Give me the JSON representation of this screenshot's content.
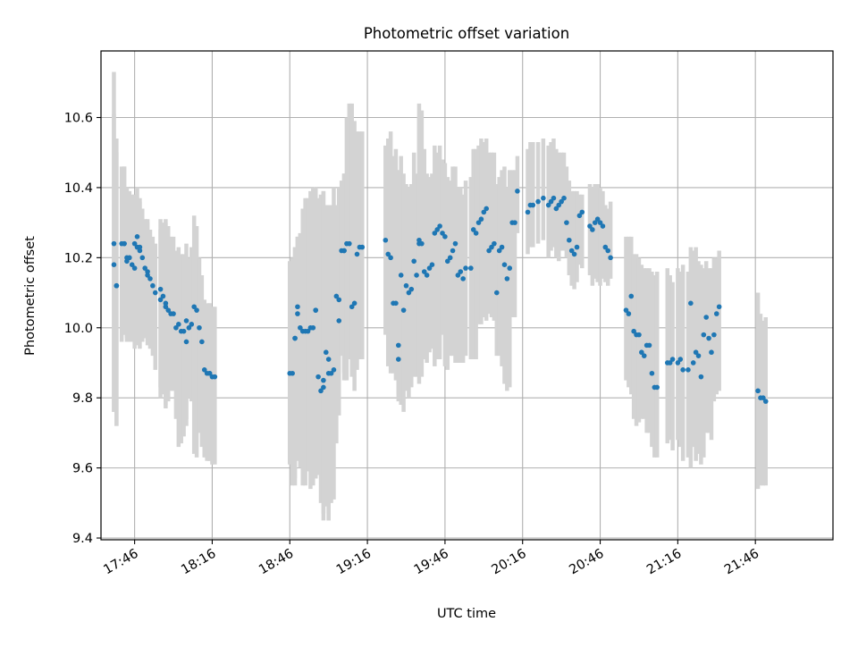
{
  "chart_data": {
    "type": "scatter",
    "title": "Photometric offset variation",
    "xlabel": "UTC time",
    "ylabel": "Photometric offset",
    "x_unit": "UTC time (HH:MM)",
    "xlim": [
      "17:33",
      "22:16"
    ],
    "ylim": [
      9.395,
      10.79
    ],
    "x_ticks": [
      "17:46",
      "18:16",
      "18:46",
      "19:16",
      "19:46",
      "20:16",
      "20:46",
      "21:16",
      "21:46"
    ],
    "y_ticks": [
      9.4,
      9.6,
      9.8,
      10.0,
      10.2,
      10.4,
      10.6
    ],
    "y_tick_labels": [
      "9.4",
      "9.6",
      "9.8",
      "10.0",
      "10.2",
      "10.4",
      "10.6"
    ],
    "grid": true,
    "legend": "none",
    "colors": {
      "points": "#1f77b4",
      "errorbars": "#d3d3d3",
      "grid": "#b0b0b0"
    },
    "series": [
      {
        "x": [
          "17:38",
          "17:38",
          "17:39",
          "17:39",
          "17:41",
          "17:42",
          "17:42",
          "17:43",
          "17:43",
          "17:44",
          "17:45",
          "17:46",
          "17:46",
          "17:47",
          "17:47",
          "17:48",
          "17:48",
          "17:49",
          "17:50",
          "17:51",
          "17:51",
          "17:52",
          "17:53",
          "17:54",
          "17:56",
          "17:56",
          "17:57",
          "17:58",
          "17:58",
          "17:59",
          "18:00",
          "18:01",
          "18:02",
          "18:03",
          "18:04",
          "18:05",
          "18:06",
          "18:06",
          "18:07",
          "18:08",
          "18:09",
          "18:10",
          "18:11",
          "18:12",
          "18:13",
          "18:14",
          "18:15",
          "18:15",
          "18:16",
          "18:17",
          "18:46",
          "18:47",
          "18:48",
          "18:48",
          "18:49",
          "18:49",
          "18:50",
          "18:51",
          "18:52",
          "18:53",
          "18:54",
          "18:55",
          "18:56",
          "18:56",
          "18:57",
          "18:58",
          "18:59",
          "18:59",
          "19:00",
          "19:01",
          "19:01",
          "19:02",
          "19:03",
          "19:04",
          "19:05",
          "19:05",
          "19:06",
          "19:07",
          "19:07",
          "19:08",
          "19:09",
          "19:10",
          "19:11",
          "19:12",
          "19:13",
          "19:14",
          "19:23",
          "19:24",
          "19:25",
          "19:26",
          "19:27",
          "19:28",
          "19:28",
          "19:29",
          "19:30",
          "19:31",
          "19:32",
          "19:33",
          "19:34",
          "19:35",
          "19:36",
          "19:36",
          "19:37",
          "19:38",
          "19:39",
          "19:40",
          "19:41",
          "19:42",
          "19:43",
          "19:44",
          "19:45",
          "19:46",
          "19:47",
          "19:48",
          "19:49",
          "19:50",
          "19:51",
          "19:52",
          "19:53",
          "19:54",
          "19:56",
          "19:57",
          "19:58",
          "19:59",
          "20:00",
          "20:01",
          "20:02",
          "20:03",
          "20:04",
          "20:05",
          "20:06",
          "20:07",
          "20:08",
          "20:09",
          "20:10",
          "20:11",
          "20:12",
          "20:13",
          "20:14",
          "20:18",
          "20:19",
          "20:20",
          "20:22",
          "20:24",
          "20:26",
          "20:27",
          "20:28",
          "20:29",
          "20:30",
          "20:31",
          "20:32",
          "20:33",
          "20:34",
          "20:35",
          "20:36",
          "20:37",
          "20:38",
          "20:39",
          "20:42",
          "20:43",
          "20:44",
          "20:45",
          "20:46",
          "20:47",
          "20:48",
          "20:49",
          "20:50",
          "20:56",
          "20:57",
          "20:58",
          "20:59",
          "21:00",
          "21:01",
          "21:02",
          "21:03",
          "21:04",
          "21:05",
          "21:06",
          "21:07",
          "21:08",
          "21:12",
          "21:13",
          "21:14",
          "21:16",
          "21:17",
          "21:18",
          "21:20",
          "21:21",
          "21:22",
          "21:23",
          "21:24",
          "21:25",
          "21:26",
          "21:27",
          "21:28",
          "21:29",
          "21:30",
          "21:31",
          "21:32",
          "21:47",
          "21:48",
          "21:49",
          "21:50"
        ],
        "y": [
          10.24,
          10.18,
          10.12,
          10.12,
          10.24,
          10.24,
          10.24,
          10.2,
          10.19,
          10.2,
          10.18,
          10.17,
          10.24,
          10.26,
          10.23,
          10.22,
          10.23,
          10.2,
          10.17,
          10.16,
          10.15,
          10.14,
          10.12,
          10.1,
          10.08,
          10.11,
          10.09,
          10.06,
          10.07,
          10.05,
          10.04,
          10.04,
          10.0,
          10.01,
          9.99,
          9.99,
          10.02,
          9.96,
          10.0,
          10.01,
          10.06,
          10.05,
          10.0,
          9.96,
          9.88,
          9.87,
          9.87,
          9.87,
          9.86,
          9.86,
          9.87,
          9.87,
          9.97,
          9.97,
          10.06,
          10.04,
          10.0,
          9.99,
          9.99,
          9.99,
          10.0,
          10.0,
          10.05,
          10.05,
          9.86,
          9.82,
          9.83,
          9.85,
          9.93,
          9.91,
          9.87,
          9.87,
          9.88,
          10.09,
          10.08,
          10.02,
          10.22,
          10.22,
          10.22,
          10.24,
          10.24,
          10.06,
          10.07,
          10.21,
          10.23,
          10.23,
          10.25,
          10.21,
          10.2,
          10.07,
          10.07,
          9.91,
          9.95,
          10.15,
          10.05,
          10.12,
          10.1,
          10.11,
          10.19,
          10.15,
          10.25,
          10.24,
          10.24,
          10.16,
          10.15,
          10.17,
          10.18,
          10.27,
          10.28,
          10.29,
          10.27,
          10.26,
          10.19,
          10.2,
          10.22,
          10.24,
          10.15,
          10.16,
          10.14,
          10.17,
          10.17,
          10.28,
          10.27,
          10.3,
          10.31,
          10.33,
          10.34,
          10.22,
          10.23,
          10.24,
          10.1,
          10.22,
          10.23,
          10.18,
          10.14,
          10.17,
          10.3,
          10.3,
          10.39,
          10.33,
          10.35,
          10.35,
          10.36,
          10.37,
          10.35,
          10.36,
          10.37,
          10.34,
          10.35,
          10.36,
          10.37,
          10.3,
          10.25,
          10.22,
          10.21,
          10.23,
          10.32,
          10.33,
          10.29,
          10.28,
          10.3,
          10.31,
          10.3,
          10.29,
          10.23,
          10.22,
          10.2,
          10.05,
          10.04,
          10.09,
          9.99,
          9.98,
          9.98,
          9.93,
          9.92,
          9.95,
          9.95,
          9.87,
          9.83,
          9.83,
          9.9,
          9.9,
          9.91,
          9.9,
          9.91,
          9.88,
          9.88,
          10.07,
          9.9,
          9.93,
          9.92,
          9.86,
          9.98,
          10.03,
          9.97,
          9.93,
          9.98,
          10.04,
          10.06,
          9.82,
          9.8,
          9.8,
          9.79
        ],
        "y_err_low": [
          0.48,
          0.42,
          0.4,
          0.4,
          0.28,
          0.26,
          0.26,
          0.24,
          0.22,
          0.24,
          0.22,
          0.2,
          0.3,
          0.3,
          0.28,
          0.28,
          0.27,
          0.24,
          0.2,
          0.2,
          0.2,
          0.2,
          0.2,
          0.22,
          0.28,
          0.28,
          0.28,
          0.28,
          0.3,
          0.26,
          0.22,
          0.22,
          0.26,
          0.35,
          0.32,
          0.3,
          0.3,
          0.22,
          0.2,
          0.22,
          0.42,
          0.42,
          0.3,
          0.3,
          0.25,
          0.25,
          0.25,
          0.25,
          0.25,
          0.25,
          0.26,
          0.32,
          0.4,
          0.42,
          0.44,
          0.4,
          0.4,
          0.44,
          0.44,
          0.4,
          0.46,
          0.45,
          0.48,
          0.48,
          0.28,
          0.32,
          0.36,
          0.4,
          0.44,
          0.46,
          0.42,
          0.37,
          0.37,
          0.42,
          0.33,
          0.27,
          0.3,
          0.35,
          0.37,
          0.39,
          0.33,
          0.2,
          0.25,
          0.33,
          0.32,
          0.32,
          0.27,
          0.32,
          0.33,
          0.2,
          0.22,
          0.12,
          0.14,
          0.37,
          0.29,
          0.3,
          0.3,
          0.28,
          0.33,
          0.29,
          0.38,
          0.4,
          0.38,
          0.25,
          0.25,
          0.24,
          0.24,
          0.38,
          0.37,
          0.38,
          0.29,
          0.37,
          0.31,
          0.28,
          0.3,
          0.34,
          0.25,
          0.26,
          0.24,
          0.25,
          0.26,
          0.37,
          0.36,
          0.29,
          0.3,
          0.3,
          0.32,
          0.18,
          0.2,
          0.22,
          0.18,
          0.3,
          0.34,
          0.34,
          0.32,
          0.34,
          0.27,
          0.27,
          0.12,
          0.12,
          0.12,
          0.12,
          0.12,
          0.12,
          0.15,
          0.14,
          0.14,
          0.14,
          0.16,
          0.14,
          0.15,
          0.1,
          0.1,
          0.1,
          0.1,
          0.1,
          0.14,
          0.16,
          0.14,
          0.16,
          0.16,
          0.18,
          0.18,
          0.15,
          0.1,
          0.1,
          0.06,
          0.2,
          0.21,
          0.28,
          0.25,
          0.26,
          0.25,
          0.19,
          0.18,
          0.25,
          0.25,
          0.21,
          0.2,
          0.2,
          0.23,
          0.22,
          0.26,
          0.22,
          0.25,
          0.26,
          0.25,
          0.47,
          0.24,
          0.31,
          0.28,
          0.25,
          0.35,
          0.33,
          0.27,
          0.25,
          0.19,
          0.23,
          0.24,
          0.28,
          0.25,
          0.25,
          0.24
        ],
        "y_err_high": [
          0.49,
          0.43,
          0.42,
          0.38,
          0.22,
          0.22,
          0.22,
          0.2,
          0.19,
          0.19,
          0.2,
          0.2,
          0.14,
          0.14,
          0.14,
          0.14,
          0.14,
          0.14,
          0.14,
          0.15,
          0.15,
          0.14,
          0.14,
          0.14,
          0.2,
          0.2,
          0.21,
          0.24,
          0.24,
          0.24,
          0.22,
          0.22,
          0.22,
          0.22,
          0.22,
          0.22,
          0.22,
          0.22,
          0.2,
          0.22,
          0.26,
          0.24,
          0.2,
          0.19,
          0.2,
          0.2,
          0.2,
          0.2,
          0.2,
          0.2,
          0.32,
          0.33,
          0.26,
          0.26,
          0.2,
          0.22,
          0.27,
          0.35,
          0.38,
          0.38,
          0.39,
          0.4,
          0.35,
          0.35,
          0.51,
          0.56,
          0.56,
          0.54,
          0.42,
          0.44,
          0.48,
          0.48,
          0.52,
          0.26,
          0.3,
          0.38,
          0.2,
          0.22,
          0.22,
          0.36,
          0.4,
          0.58,
          0.52,
          0.35,
          0.33,
          0.33,
          0.27,
          0.33,
          0.36,
          0.42,
          0.44,
          0.54,
          0.5,
          0.34,
          0.39,
          0.29,
          0.3,
          0.3,
          0.31,
          0.29,
          0.35,
          0.4,
          0.38,
          0.35,
          0.29,
          0.26,
          0.26,
          0.25,
          0.22,
          0.23,
          0.21,
          0.21,
          0.24,
          0.22,
          0.24,
          0.22,
          0.25,
          0.24,
          0.24,
          0.25,
          0.26,
          0.23,
          0.24,
          0.22,
          0.23,
          0.2,
          0.2,
          0.28,
          0.27,
          0.26,
          0.31,
          0.21,
          0.22,
          0.28,
          0.26,
          0.28,
          0.15,
          0.15,
          0.1,
          0.18,
          0.18,
          0.18,
          0.17,
          0.17,
          0.17,
          0.17,
          0.17,
          0.17,
          0.15,
          0.14,
          0.13,
          0.16,
          0.17,
          0.17,
          0.18,
          0.16,
          0.06,
          0.05,
          0.12,
          0.12,
          0.11,
          0.1,
          0.1,
          0.1,
          0.12,
          0.12,
          0.16,
          0.21,
          0.22,
          0.17,
          0.22,
          0.23,
          0.22,
          0.25,
          0.25,
          0.22,
          0.22,
          0.29,
          0.32,
          0.33,
          0.27,
          0.25,
          0.22,
          0.27,
          0.25,
          0.3,
          0.28,
          0.16,
          0.32,
          0.3,
          0.27,
          0.32,
          0.19,
          0.16,
          0.2,
          0.24,
          0.22,
          0.16,
          0.16,
          0.28,
          0.24,
          0.22,
          0.24
        ]
      }
    ]
  }
}
